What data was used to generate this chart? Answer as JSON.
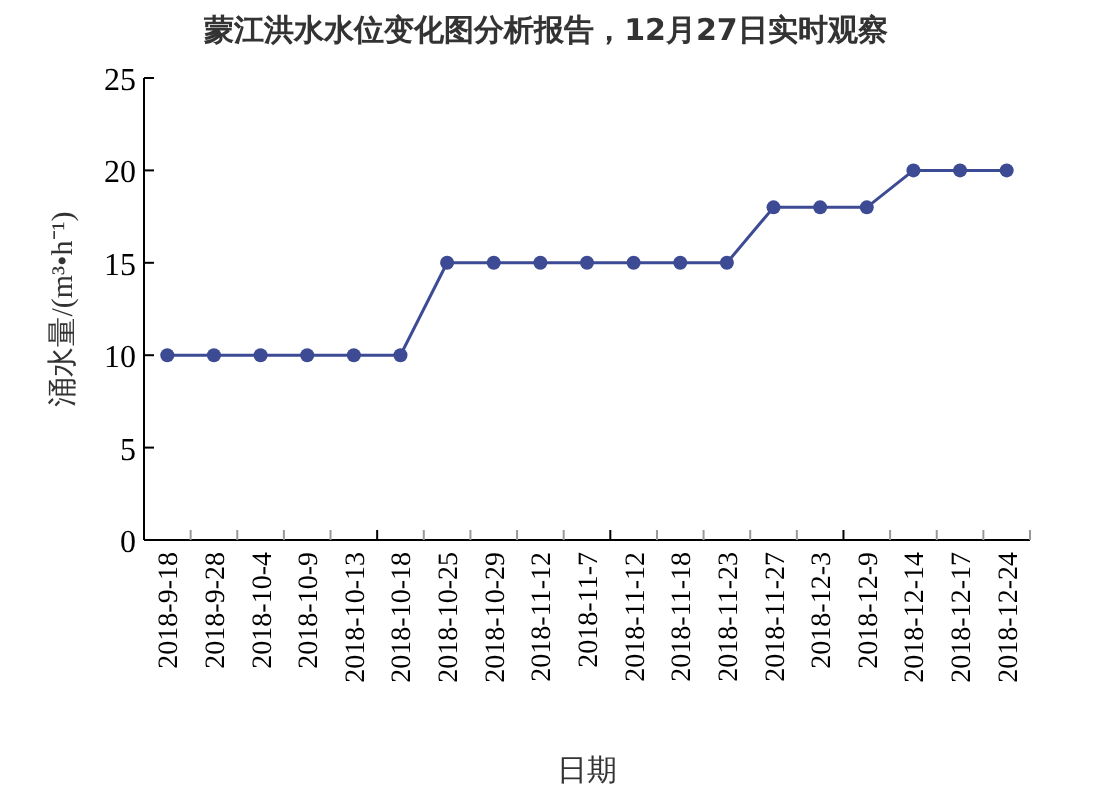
{
  "chart_data": {
    "type": "line",
    "title": "蒙江洪水水位变化图分析报告，12月27日实时观察",
    "xlabel": "日期",
    "ylabel": "涌水量/(m³•h⁻¹)",
    "categories": [
      "2018-9-18",
      "2018-9-28",
      "2018-10-4",
      "2018-10-9",
      "2018-10-13",
      "2018-10-18",
      "2018-10-25",
      "2018-10-29",
      "2018-11-12",
      "2018-11-7",
      "2018-11-12",
      "2018-11-18",
      "2018-11-23",
      "2018-11-27",
      "2018-12-3",
      "2018-12-9",
      "2018-12-14",
      "2018-12-17",
      "2018-12-24"
    ],
    "series": [
      {
        "color": "#3d4a94",
        "values": [
          10,
          10,
          10,
          10,
          10,
          10,
          15,
          15,
          15,
          15,
          15,
          15,
          15,
          18,
          18,
          18,
          20,
          20,
          20
        ]
      }
    ],
    "ylim": [
      0,
      25
    ],
    "yticks": [
      0,
      5,
      10,
      15,
      20,
      25
    ],
    "grid": false,
    "marker": "circle",
    "line_style": "solid"
  }
}
